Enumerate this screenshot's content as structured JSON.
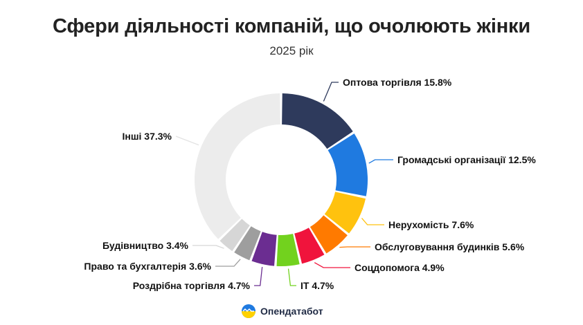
{
  "title": "Сфери діяльності компаній, що очолюють жінки",
  "subtitle": "2025 рік",
  "brand": {
    "name": "Опендатабот",
    "logo_icon": "opendatabot-logo-icon"
  },
  "chart_data": {
    "type": "pie",
    "variant": "donut",
    "title": "Сфери діяльності компаній, що очолюють жінки",
    "subtitle": "2025 рік",
    "unit": "%",
    "slices": [
      {
        "label": "Оптова торгівля",
        "value": 15.8,
        "display": "Оптова торгівля 15.8%",
        "color": "#2e3a5c"
      },
      {
        "label": "Громадські організації",
        "value": 12.5,
        "display": "Громадські організації 12.5%",
        "color": "#1f7ae0"
      },
      {
        "label": "Нерухомість",
        "value": 7.6,
        "display": "Нерухомість 7.6%",
        "color": "#ffc20e"
      },
      {
        "label": "Обслуговування будинків",
        "value": 5.6,
        "display": "Обслуговування будинків 5.6%",
        "color": "#ff7a00"
      },
      {
        "label": "Соцдопомога",
        "value": 4.9,
        "display": "Соцдопомога 4.9%",
        "color": "#f0143c"
      },
      {
        "label": "IT",
        "value": 4.7,
        "display": "IT 4.7%",
        "color": "#72d21e"
      },
      {
        "label": "Роздрібна торгівля",
        "value": 4.7,
        "display": "Роздрібна торгівля 4.7%",
        "color": "#6b2d91"
      },
      {
        "label": "Право та бухгалтерія",
        "value": 3.6,
        "display": "Право та бухгалтерія 3.6%",
        "color": "#9e9e9e"
      },
      {
        "label": "Будівництво",
        "value": 3.4,
        "display": "Будівництво 3.4%",
        "color": "#d6d6d6"
      },
      {
        "label": "Інші",
        "value": 37.3,
        "display": "Інші 37.3%",
        "color": "#ececec"
      }
    ]
  }
}
